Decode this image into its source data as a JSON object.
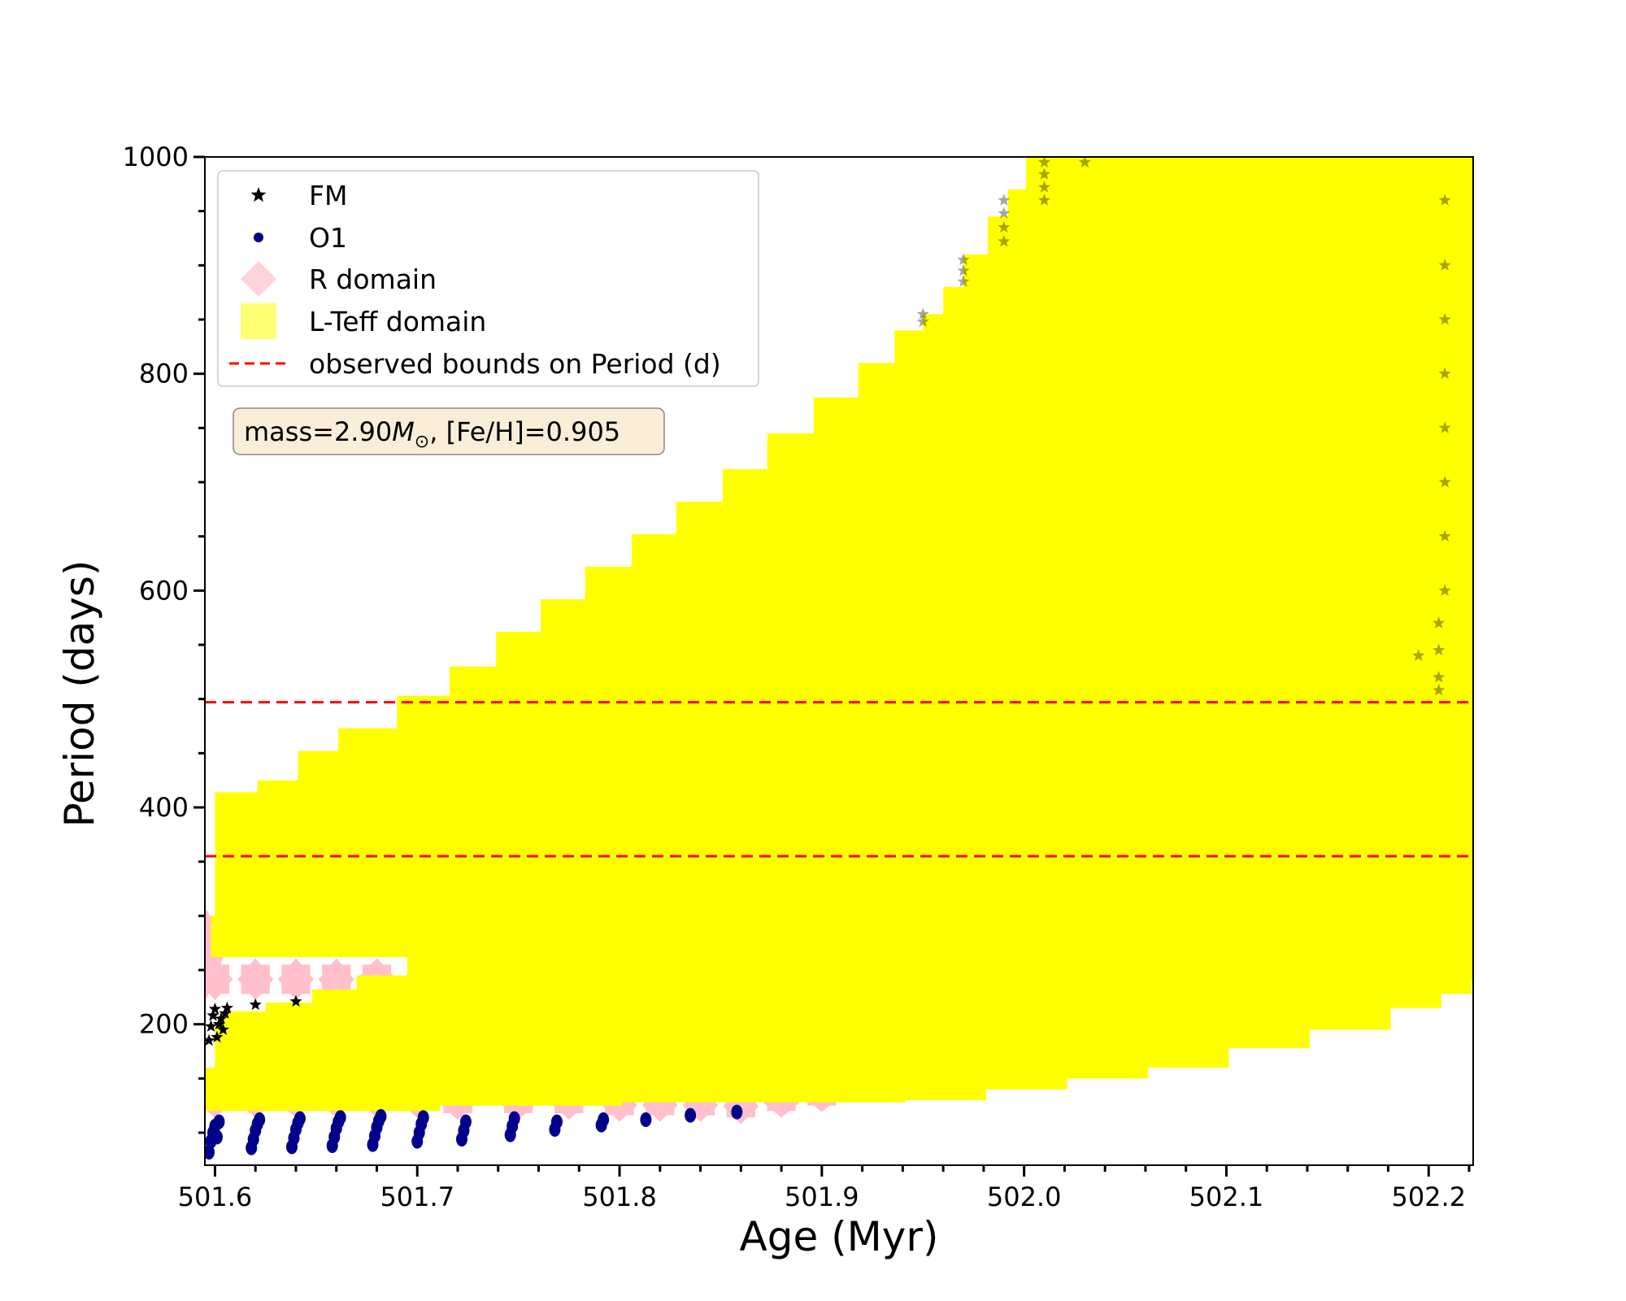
{
  "chart_data": {
    "type": "scatter",
    "title": "",
    "xlabel": "Age (Myr)",
    "ylabel": "Period (days)",
    "xlim": [
      501.595,
      502.222
    ],
    "ylim": [
      70,
      1000
    ],
    "x_ticks": [
      501.6,
      501.7,
      501.8,
      501.9,
      502.0,
      502.1,
      502.2
    ],
    "x_tick_labels": [
      "501.6",
      "501.7",
      "501.8",
      "501.9",
      "502.0",
      "502.1",
      "502.2"
    ],
    "y_ticks": [
      200,
      400,
      600,
      800,
      1000
    ],
    "y_tick_labels": [
      "200",
      "400",
      "600",
      "800",
      "1000"
    ],
    "grid": false,
    "legend_position": "top-left",
    "legend": [
      {
        "label": "FM",
        "marker": "star",
        "color": "#000000"
      },
      {
        "label": "O1",
        "marker": "circle",
        "color": "#00008b"
      },
      {
        "label": "R domain",
        "marker": "diamond",
        "color": "#ffc0cb"
      },
      {
        "label": "L-Teff domain",
        "marker": "square",
        "color": "#ffff00"
      },
      {
        "label": "observed bounds on Period (d)",
        "marker": "dashed-line",
        "color": "#ff0000"
      }
    ],
    "annotation_prefix": "mass=2.90",
    "annotation_symbol": "M",
    "annotation_sub": "⊙",
    "annotation_suffix": ", [Fe/H]=0.905",
    "observed_bounds": [
      355,
      497
    ],
    "upper_domain": {
      "name": "L-Teff domain",
      "color": "#ffff00",
      "points": [
        [
          501.598,
          262,
          300
        ],
        [
          501.6,
          262,
          414
        ],
        [
          501.62,
          262,
          414
        ],
        [
          501.621,
          262,
          425
        ],
        [
          501.64,
          262,
          425
        ],
        [
          501.641,
          262,
          452
        ],
        [
          501.66,
          262,
          452
        ],
        [
          501.661,
          262,
          473
        ],
        [
          501.68,
          262,
          473
        ],
        [
          501.69,
          262,
          503
        ],
        [
          501.715,
          262,
          503
        ],
        [
          501.716,
          262,
          530
        ],
        [
          501.738,
          262,
          530
        ],
        [
          501.739,
          262,
          562
        ],
        [
          501.76,
          262,
          562
        ],
        [
          501.761,
          262,
          592
        ],
        [
          501.782,
          262,
          592
        ],
        [
          501.783,
          262,
          622
        ],
        [
          501.805,
          262,
          622
        ],
        [
          501.806,
          262,
          652
        ],
        [
          501.827,
          262,
          652
        ],
        [
          501.828,
          262,
          682
        ],
        [
          501.85,
          262,
          682
        ],
        [
          501.851,
          262,
          712
        ],
        [
          501.872,
          262,
          712
        ],
        [
          501.873,
          262,
          745
        ],
        [
          501.895,
          262,
          745
        ],
        [
          501.896,
          262,
          778
        ],
        [
          501.917,
          262,
          778
        ],
        [
          501.918,
          262,
          810
        ],
        [
          501.935,
          262,
          810
        ],
        [
          501.936,
          262,
          840
        ],
        [
          501.948,
          262,
          840
        ],
        [
          501.95,
          262,
          855
        ],
        [
          501.958,
          262,
          855
        ],
        [
          501.96,
          262,
          880
        ],
        [
          501.968,
          262,
          880
        ],
        [
          501.97,
          262,
          910
        ],
        [
          501.98,
          262,
          910
        ],
        [
          501.982,
          262,
          945
        ],
        [
          501.99,
          262,
          945
        ],
        [
          501.992,
          262,
          970
        ],
        [
          502.0,
          262,
          970
        ],
        [
          502.001,
          262,
          1000
        ],
        [
          502.22,
          262,
          1000
        ]
      ]
    },
    "lower_domain": {
      "name": "L-Teff domain",
      "color": "#ffff00",
      "points": [
        [
          501.595,
          120,
          160
        ],
        [
          501.6,
          120,
          200
        ],
        [
          501.603,
          120,
          212
        ],
        [
          501.62,
          120,
          212
        ],
        [
          501.625,
          120,
          220
        ],
        [
          501.64,
          120,
          220
        ],
        [
          501.648,
          120,
          232
        ],
        [
          501.665,
          120,
          232
        ],
        [
          501.67,
          120,
          245
        ],
        [
          501.69,
          120,
          245
        ],
        [
          501.695,
          120,
          262
        ],
        [
          501.71,
          125,
          262
        ],
        [
          501.75,
          125,
          262
        ],
        [
          501.8,
          128,
          262
        ],
        [
          501.85,
          128,
          262
        ],
        [
          501.9,
          128,
          262
        ],
        [
          501.94,
          130,
          262
        ],
        [
          501.98,
          140,
          262
        ],
        [
          502.02,
          150,
          262
        ],
        [
          502.06,
          160,
          262
        ],
        [
          502.1,
          178,
          300
        ],
        [
          502.14,
          195,
          340
        ],
        [
          502.18,
          215,
          400
        ],
        [
          502.205,
          228,
          450
        ],
        [
          502.22,
          240,
          475
        ]
      ]
    },
    "r_domain": {
      "name": "R domain",
      "color": "#ffc0cb",
      "points": [
        [
          501.596,
          230,
          300
        ],
        [
          501.6,
          228,
          255
        ],
        [
          501.62,
          228,
          255
        ],
        [
          501.64,
          228,
          255
        ],
        [
          501.66,
          228,
          255
        ],
        [
          501.68,
          232,
          255
        ],
        [
          501.6,
          120,
          135
        ],
        [
          501.62,
          120,
          135
        ],
        [
          501.64,
          120,
          135
        ],
        [
          501.66,
          120,
          135
        ],
        [
          501.68,
          120,
          135
        ],
        [
          501.7,
          120,
          135
        ],
        [
          501.72,
          118,
          135
        ],
        [
          501.75,
          118,
          135
        ],
        [
          501.775,
          118,
          135
        ],
        [
          501.8,
          116,
          135
        ],
        [
          501.82,
          116,
          135
        ],
        [
          501.84,
          116,
          135
        ],
        [
          501.86,
          114,
          135
        ],
        [
          501.88,
          120,
          135
        ],
        [
          501.9,
          125,
          140
        ]
      ]
    },
    "fm": {
      "name": "FM",
      "color": "#000000",
      "points": [
        [
          501.597,
          185
        ],
        [
          501.598,
          198
        ],
        [
          501.599,
          208
        ],
        [
          501.6,
          214
        ],
        [
          501.601,
          188
        ],
        [
          501.602,
          200
        ],
        [
          501.603,
          205
        ],
        [
          501.604,
          195
        ],
        [
          501.605,
          210
        ],
        [
          501.606,
          215
        ],
        [
          501.62,
          218
        ],
        [
          501.64,
          221
        ],
        [
          501.95,
          855
        ],
        [
          501.95,
          848
        ],
        [
          501.97,
          885
        ],
        [
          501.97,
          895
        ],
        [
          501.97,
          905
        ],
        [
          501.99,
          922
        ],
        [
          501.99,
          935
        ],
        [
          501.99,
          948
        ],
        [
          501.99,
          960
        ],
        [
          502.01,
          960
        ],
        [
          502.01,
          972
        ],
        [
          502.01,
          984
        ],
        [
          502.01,
          995
        ],
        [
          502.03,
          995
        ],
        [
          502.205,
          508
        ],
        [
          502.205,
          520
        ],
        [
          502.205,
          545
        ],
        [
          502.205,
          570
        ],
        [
          502.195,
          540
        ],
        [
          502.208,
          600
        ],
        [
          502.208,
          650
        ],
        [
          502.208,
          700
        ],
        [
          502.208,
          750
        ],
        [
          502.208,
          800
        ],
        [
          502.208,
          850
        ],
        [
          502.208,
          900
        ],
        [
          502.208,
          960
        ]
      ]
    },
    "o1": {
      "name": "O1",
      "color": "#00008b",
      "points": [
        [
          501.597,
          82
        ],
        [
          501.598,
          92
        ],
        [
          501.599,
          100
        ],
        [
          501.6,
          106
        ],
        [
          501.601,
          96
        ],
        [
          501.602,
          110
        ],
        [
          501.618,
          86
        ],
        [
          501.619,
          94
        ],
        [
          501.62,
          102
        ],
        [
          501.621,
          108
        ],
        [
          501.622,
          112
        ],
        [
          501.638,
          87
        ],
        [
          501.639,
          95
        ],
        [
          501.64,
          103
        ],
        [
          501.641,
          109
        ],
        [
          501.642,
          113
        ],
        [
          501.658,
          88
        ],
        [
          501.659,
          96
        ],
        [
          501.66,
          104
        ],
        [
          501.661,
          110
        ],
        [
          501.662,
          114
        ],
        [
          501.678,
          89
        ],
        [
          501.679,
          97
        ],
        [
          501.68,
          105
        ],
        [
          501.681,
          111
        ],
        [
          501.682,
          115
        ],
        [
          501.7,
          92
        ],
        [
          501.701,
          100
        ],
        [
          501.702,
          108
        ],
        [
          501.703,
          114
        ],
        [
          501.722,
          94
        ],
        [
          501.723,
          102
        ],
        [
          501.724,
          110
        ],
        [
          501.746,
          98
        ],
        [
          501.747,
          106
        ],
        [
          501.748,
          113
        ],
        [
          501.768,
          103
        ],
        [
          501.769,
          110
        ],
        [
          501.791,
          107
        ],
        [
          501.792,
          112
        ],
        [
          501.813,
          112
        ],
        [
          501.835,
          116
        ],
        [
          501.858,
          119
        ]
      ]
    }
  }
}
